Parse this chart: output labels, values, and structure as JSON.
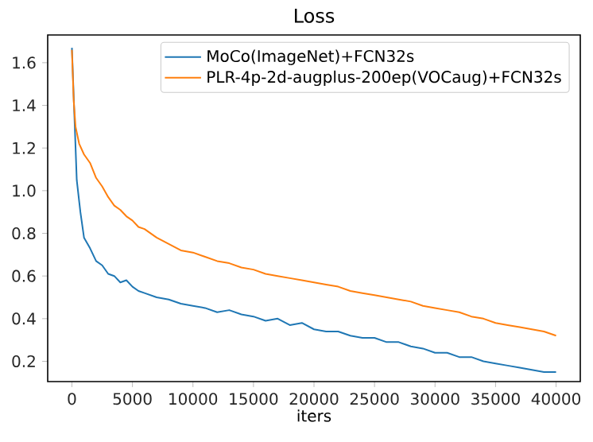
{
  "chart_data": {
    "type": "line",
    "title": "Loss",
    "xlabel": "iters",
    "xlim": [
      -2000,
      42000
    ],
    "ylim": [
      0.105,
      1.73
    ],
    "xticks": [
      0,
      5000,
      10000,
      15000,
      20000,
      25000,
      30000,
      35000,
      40000
    ],
    "yticks": [
      0.2,
      0.4,
      0.6,
      0.8,
      {
        "value": 1.0,
        "label": "1.0"
      },
      1.2,
      1.4,
      1.6
    ],
    "legend": "top right",
    "grid": false,
    "marker": "none",
    "line_style": "solid",
    "series": [
      {
        "name": "MoCo(ImageNet)+FCN32s",
        "color": "#1f77b4",
        "x": [
          0,
          200,
          400,
          700,
          1000,
          1500,
          2000,
          2500,
          3000,
          3500,
          4000,
          4500,
          5000,
          5500,
          6000,
          7000,
          8000,
          9000,
          10000,
          11000,
          12000,
          13000,
          14000,
          15000,
          16000,
          17000,
          18000,
          19000,
          20000,
          21000,
          22000,
          23000,
          24000,
          25000,
          26000,
          27000,
          28000,
          29000,
          30000,
          31000,
          32000,
          33000,
          34000,
          35000,
          36000,
          37000,
          38000,
          39000,
          40000
        ],
        "values": [
          1.67,
          null,
          1.05,
          0.9,
          0.78,
          0.73,
          0.67,
          0.65,
          0.61,
          0.6,
          0.57,
          0.58,
          0.55,
          0.53,
          0.52,
          0.5,
          0.49,
          0.47,
          0.46,
          0.45,
          0.43,
          0.44,
          0.42,
          0.41,
          0.39,
          0.4,
          0.37,
          0.38,
          0.35,
          0.34,
          0.34,
          0.32,
          0.31,
          0.31,
          0.29,
          0.29,
          0.27,
          0.26,
          0.24,
          0.24,
          0.22,
          0.22,
          0.2,
          0.19,
          0.18,
          0.17,
          0.16,
          0.15,
          0.15
        ]
      },
      {
        "name": "PLR-4p-2d-augplus-200ep(VOCaug)+FCN32s",
        "color": "#ff7f0e",
        "x": [
          0,
          150,
          300,
          600,
          1000,
          1500,
          2000,
          2500,
          3000,
          3500,
          4000,
          4500,
          5000,
          5500,
          6000,
          7000,
          8000,
          9000,
          10000,
          11000,
          12000,
          13000,
          14000,
          15000,
          16000,
          17000,
          18000,
          19000,
          20000,
          21000,
          22000,
          23000,
          24000,
          25000,
          26000,
          27000,
          28000,
          29000,
          30000,
          31000,
          32000,
          33000,
          34000,
          35000,
          36000,
          37000,
          38000,
          39000,
          40000
        ],
        "values": [
          1.66,
          1.42,
          1.3,
          1.22,
          1.17,
          1.13,
          1.06,
          1.02,
          0.97,
          0.93,
          0.91,
          0.88,
          0.86,
          0.83,
          0.82,
          0.78,
          0.75,
          0.72,
          0.71,
          0.69,
          0.67,
          0.66,
          0.64,
          0.63,
          0.61,
          0.6,
          0.59,
          0.58,
          0.57,
          0.56,
          0.55,
          0.53,
          0.52,
          0.51,
          0.5,
          0.49,
          0.48,
          0.46,
          0.45,
          0.44,
          0.43,
          0.41,
          0.4,
          0.38,
          0.37,
          0.36,
          0.35,
          0.34,
          0.32
        ]
      }
    ]
  }
}
